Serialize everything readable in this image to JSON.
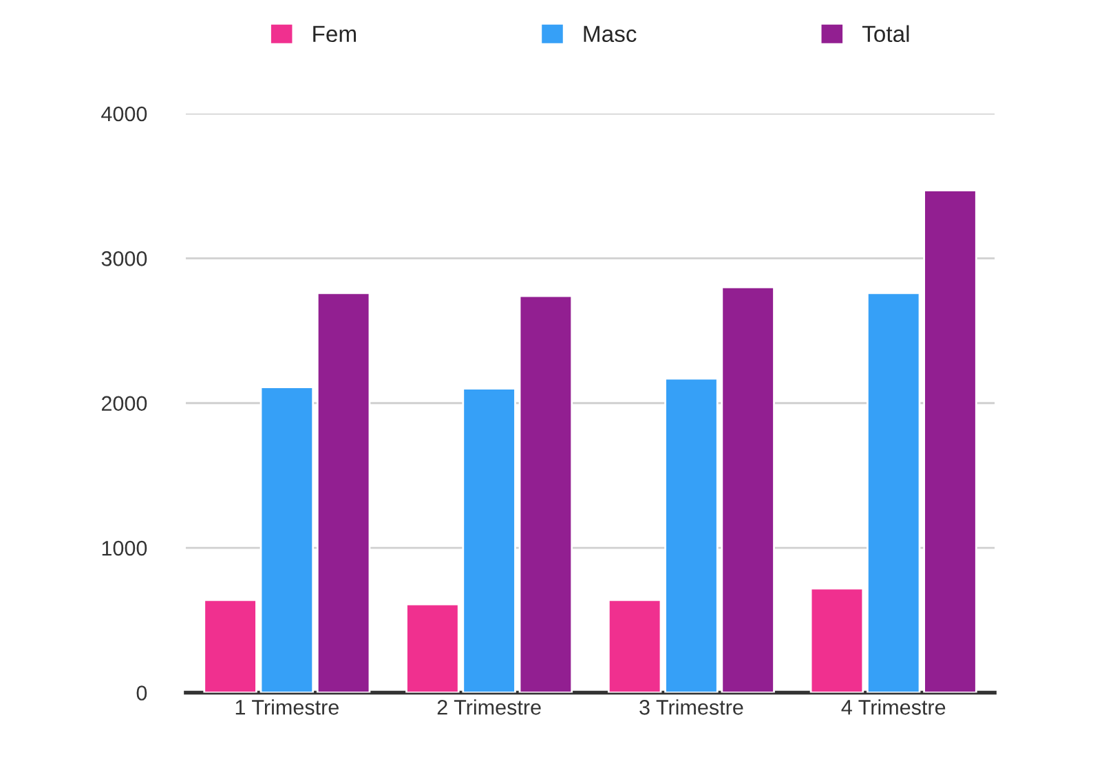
{
  "chart_data": {
    "type": "bar",
    "categories": [
      "1 Trimestre",
      "2 Trimestre",
      "3 Trimestre",
      "4 Trimestre"
    ],
    "series": [
      {
        "name": "Fem",
        "color": "#f0308f",
        "values": [
          640,
          610,
          640,
          720
        ]
      },
      {
        "name": "Masc",
        "color": "#36a0f7",
        "values": [
          2110,
          2100,
          2170,
          2760
        ]
      },
      {
        "name": "Total",
        "color": "#921f91",
        "values": [
          2760,
          2740,
          2800,
          3470
        ]
      }
    ],
    "ylim": [
      0,
      4000
    ],
    "yticks": [
      0,
      1000,
      2000,
      3000,
      4000
    ],
    "grid": "y",
    "legend": "top"
  }
}
